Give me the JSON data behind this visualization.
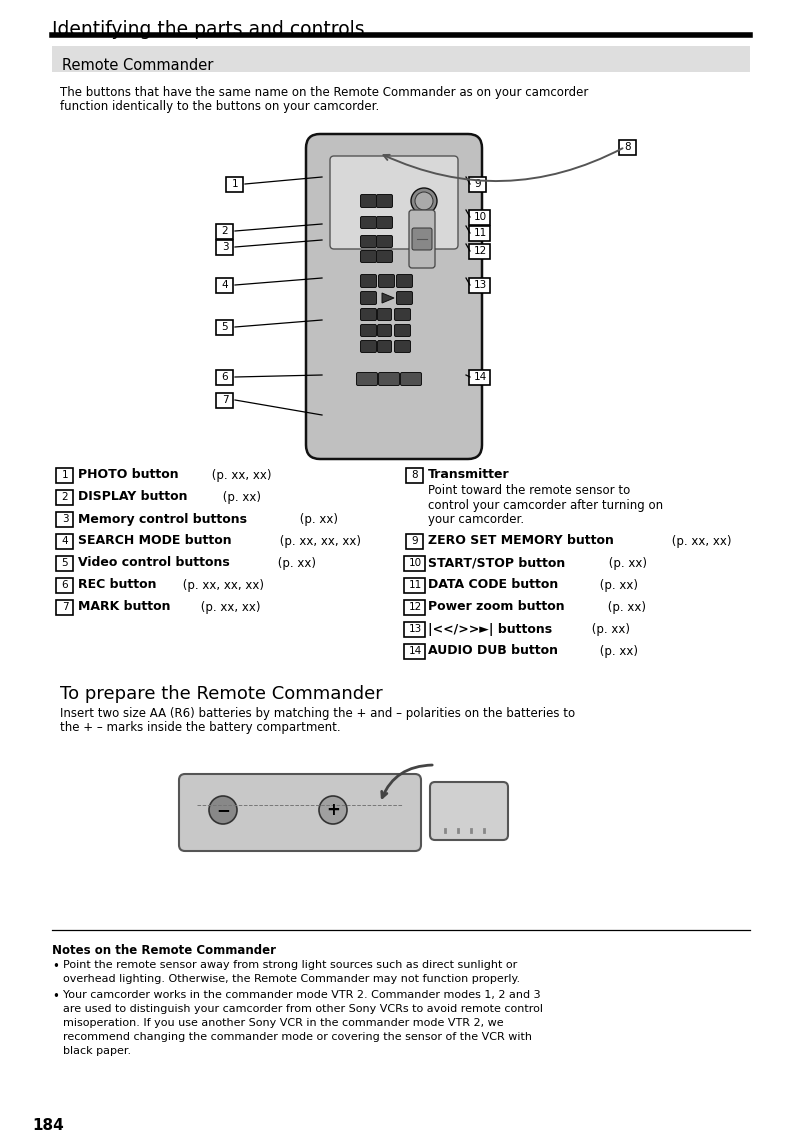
{
  "page_title": "Identifying the parts and controls",
  "section_title": "Remote Commander",
  "intro_line1": "The buttons that have the same name on the Remote Commander as on your camcorder",
  "intro_line2": "function identically to the buttons on your camcorder.",
  "prepare_title": "To prepare the Remote Commander",
  "prepare_line1": "Insert two size AA (R6) batteries by matching the + and – polarities on the batteries to",
  "prepare_line2": "the + – marks inside the battery compartment.",
  "notes_title": "Notes on the Remote Commander",
  "note1_line1": "Point the remote sensor away from strong light sources such as direct sunlight or",
  "note1_line2": "overhead lighting. Otherwise, the Remote Commander may not function properly.",
  "note2_line1": "Your camcorder works in the commander mode VTR 2. Commander modes 1, 2 and 3",
  "note2_line2": "are used to distinguish your camcorder from other Sony VCRs to avoid remote control",
  "note2_line3": "misoperation. If you use another Sony VCR in the commander mode VTR 2, we",
  "note2_line4": "recommend changing the commander mode or covering the sensor of the VCR with",
  "note2_line5": "black paper.",
  "page_number": "184",
  "left_items": [
    {
      "num": "1",
      "bold": "PHOTO button",
      "normal": " (p. xx, xx)"
    },
    {
      "num": "2",
      "bold": "DISPLAY button",
      "normal": " (p. xx)"
    },
    {
      "num": "3",
      "bold": "Memory control buttons",
      "normal": " (p. xx)"
    },
    {
      "num": "4",
      "bold": "SEARCH MODE button",
      "normal": " (p. xx, xx, xx)"
    },
    {
      "num": "5",
      "bold": "Video control buttons",
      "normal": " (p. xx)"
    },
    {
      "num": "6",
      "bold": "REC button",
      "normal": " (p. xx, xx, xx)"
    },
    {
      "num": "7",
      "bold": "MARK button",
      "normal": " (p. xx, xx)"
    }
  ],
  "right_items": [
    {
      "num": "9",
      "bold": "ZERO SET MEMORY button",
      "normal": " (p. xx, xx)"
    },
    {
      "num": "10",
      "bold": "START/STOP button",
      "normal": " (p. xx)"
    },
    {
      "num": "11",
      "bold": "DATA CODE button",
      "normal": " (p. xx)"
    },
    {
      "num": "12",
      "bold": "Power zoom button",
      "normal": " (p. xx)"
    },
    {
      "num": "13",
      "bold": "|<</>>►| buttons",
      "normal": " (p. xx)"
    },
    {
      "num": "14",
      "bold": "AUDIO DUB button",
      "normal": " (p. xx)"
    }
  ],
  "bg_color": "#ffffff",
  "section_bg": "#dedede",
  "remote_body_color": "#c0c0c0",
  "remote_inner_color": "#d8d8d8",
  "button_dark": "#404040",
  "button_outline": "#000000"
}
